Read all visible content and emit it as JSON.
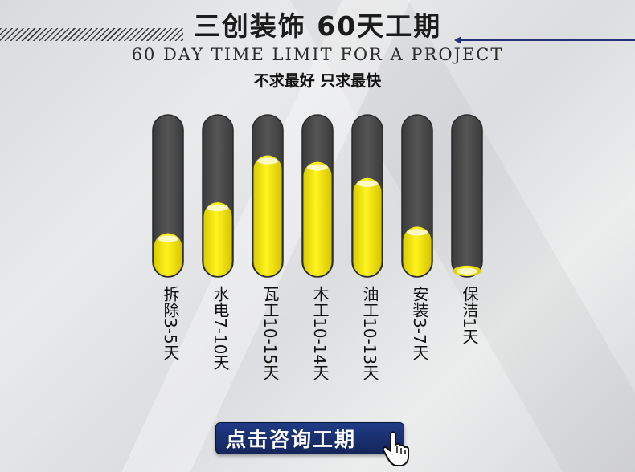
{
  "header": {
    "title": "三创装饰  60天工期",
    "subtitle": "60 DAY TIME LIMIT FOR A PROJECT",
    "tagline": "不求最好  只求最快"
  },
  "chart_data": {
    "type": "bar",
    "categories": [
      "拆除3-5天",
      "水电7-10天",
      "瓦工10-15天",
      "木工10-14天",
      "油工10-13天",
      "安装3-7天",
      "保洁1天"
    ],
    "values": [
      0.27,
      0.46,
      0.75,
      0.71,
      0.61,
      0.31,
      0.07
    ],
    "ylim": [
      0,
      1
    ],
    "colors": {
      "track": "#4d4d4d",
      "fill": "#f4e81a",
      "highlight": "#fffbe0"
    }
  },
  "cta": {
    "label": "点击咨询工期"
  },
  "icons": {
    "cursor": "hand-pointer-icon"
  }
}
